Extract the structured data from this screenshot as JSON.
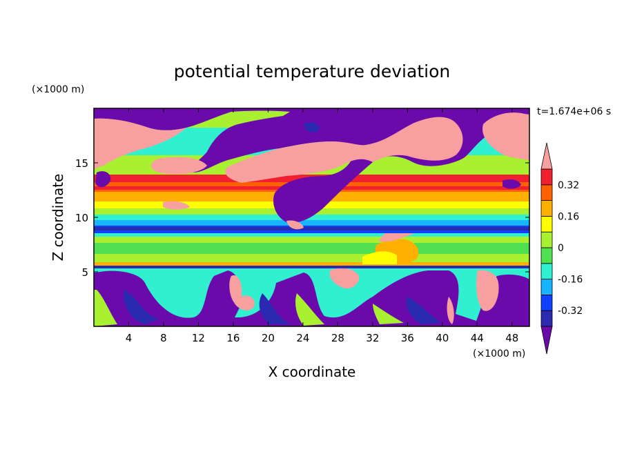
{
  "chart_data": {
    "type": "heatmap",
    "title": "potential temperature deviation",
    "xlabel": "X coordinate",
    "ylabel": "Z coordinate",
    "x_unit": "(×1000 m)",
    "y_unit": "(×1000 m)",
    "time_label": "t=1.674e+06 s",
    "xlim": [
      0,
      50
    ],
    "ylim": [
      0,
      20
    ],
    "x_ticks": [
      4,
      8,
      12,
      16,
      20,
      24,
      28,
      32,
      36,
      40,
      44,
      48
    ],
    "y_ticks": [
      5,
      10,
      15
    ],
    "grid": false,
    "legend_position": "right",
    "colorbar": {
      "levels": [
        -0.4,
        -0.32,
        -0.24,
        -0.16,
        -0.08,
        0,
        0.08,
        0.16,
        0.24,
        0.32,
        0.4
      ],
      "labels": [
        "0.32",
        "0.16",
        "0",
        "-0.16",
        "-0.32"
      ],
      "label_values": [
        0.32,
        0.16,
        0,
        -0.16,
        -0.32
      ],
      "colors": [
        "#6a0aab",
        "#2a2ab0",
        "#1040ff",
        "#19b4ff",
        "#30f0d0",
        "#50e050",
        "#a8f030",
        "#ffff00",
        "#ffb000",
        "#ff6000",
        "#f02030",
        "#f8a0a0"
      ]
    }
  }
}
